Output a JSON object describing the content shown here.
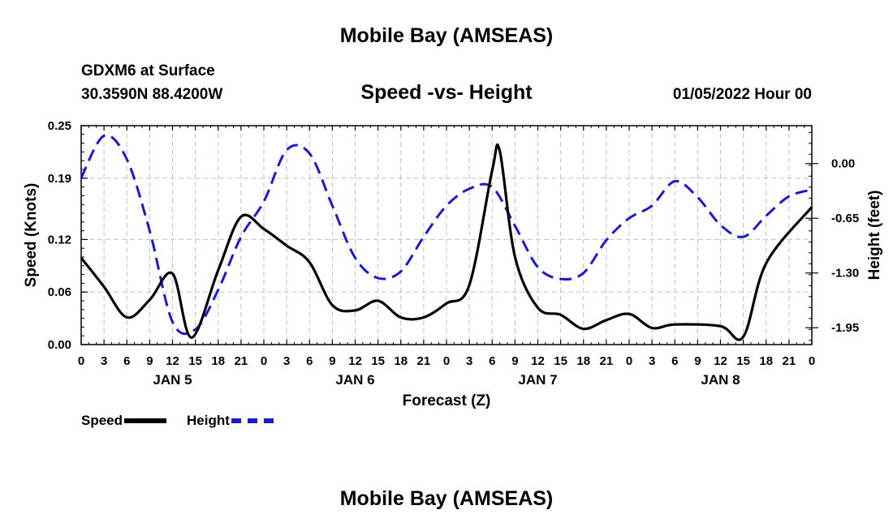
{
  "page": {
    "title": "Mobile Bay (AMSEAS)",
    "station": "GDXM6 at Surface",
    "coordinates": "30.3590N  88.4200W",
    "datetime": "01/05/2022 Hour 00",
    "bottom_title": "Mobile Bay (AMSEAS)"
  },
  "colors": {
    "speed": "#000000",
    "height": "#1a1acc",
    "grid": "#bfbfbf"
  },
  "chart_data": {
    "type": "line",
    "title": "Speed -vs- Height",
    "xlabel": "Forecast (Z)",
    "ylabel": "Speed (Knots)",
    "y2label": "Height (feet)",
    "x_unit": "hours from 01/05/2022 00Z",
    "xlim": [
      0,
      96
    ],
    "ylim": [
      0,
      0.25
    ],
    "y2lim": [
      -2.15,
      0.45
    ],
    "grid": true,
    "legend_position": "bottom-left",
    "x_tick_labels": [
      "0",
      "3",
      "6",
      "9",
      "12",
      "15",
      "18",
      "21",
      "0",
      "3",
      "6",
      "9",
      "12",
      "15",
      "18",
      "21",
      "0",
      "3",
      "6",
      "9",
      "12",
      "15",
      "18",
      "21",
      "0",
      "3",
      "6",
      "9",
      "12",
      "15",
      "18",
      "21",
      "0"
    ],
    "date_labels": [
      {
        "label": "JAN 5",
        "hour": 12
      },
      {
        "label": "JAN 6",
        "hour": 36
      },
      {
        "label": "JAN 7",
        "hour": 60
      },
      {
        "label": "JAN 8",
        "hour": 84
      }
    ],
    "y_tick_labels": [
      "0.00",
      "0.06",
      "0.12",
      "0.19",
      "0.25"
    ],
    "y2_tick_labels": [
      "-1.95",
      "-1.30",
      "-0.65",
      "0.00"
    ],
    "series": [
      {
        "name": "Speed",
        "axis": "left",
        "style": "solid",
        "points": [
          [
            0,
            0.099
          ],
          [
            3,
            0.066
          ],
          [
            6,
            0.031
          ],
          [
            9,
            0.051
          ],
          [
            12,
            0.081
          ],
          [
            14.5,
            0.008
          ],
          [
            18,
            0.085
          ],
          [
            21,
            0.146
          ],
          [
            24,
            0.132
          ],
          [
            27,
            0.113
          ],
          [
            30,
            0.094
          ],
          [
            33,
            0.045
          ],
          [
            36,
            0.039
          ],
          [
            39,
            0.05
          ],
          [
            42,
            0.031
          ],
          [
            45,
            0.031
          ],
          [
            48,
            0.047
          ],
          [
            51,
            0.068
          ],
          [
            54,
            0.199
          ],
          [
            55,
            0.221
          ],
          [
            57,
            0.1
          ],
          [
            60,
            0.042
          ],
          [
            63,
            0.034
          ],
          [
            66,
            0.018
          ],
          [
            69,
            0.028
          ],
          [
            72,
            0.035
          ],
          [
            75,
            0.019
          ],
          [
            78,
            0.023
          ],
          [
            84,
            0.021
          ],
          [
            87,
            0.009
          ],
          [
            90,
            0.093
          ],
          [
            96,
            0.157
          ]
        ]
      },
      {
        "name": "Height",
        "axis": "right",
        "style": "dashed",
        "points": [
          [
            0,
            -0.17
          ],
          [
            3,
            0.33
          ],
          [
            6,
            0.05
          ],
          [
            9,
            -0.8
          ],
          [
            12,
            -1.88
          ],
          [
            15,
            -1.97
          ],
          [
            18,
            -1.5
          ],
          [
            21,
            -0.87
          ],
          [
            24,
            -0.45
          ],
          [
            27,
            0.16
          ],
          [
            30,
            0.12
          ],
          [
            33,
            -0.5
          ],
          [
            36,
            -1.12
          ],
          [
            39,
            -1.36
          ],
          [
            42,
            -1.28
          ],
          [
            45,
            -0.87
          ],
          [
            48,
            -0.5
          ],
          [
            51,
            -0.3
          ],
          [
            54,
            -0.28
          ],
          [
            57,
            -0.74
          ],
          [
            60,
            -1.23
          ],
          [
            63,
            -1.37
          ],
          [
            66,
            -1.3
          ],
          [
            69,
            -0.91
          ],
          [
            72,
            -0.65
          ],
          [
            75,
            -0.5
          ],
          [
            78,
            -0.21
          ],
          [
            81,
            -0.4
          ],
          [
            84,
            -0.73
          ],
          [
            87,
            -0.87
          ],
          [
            90,
            -0.62
          ],
          [
            93,
            -0.39
          ],
          [
            96,
            -0.31
          ]
        ]
      }
    ]
  }
}
